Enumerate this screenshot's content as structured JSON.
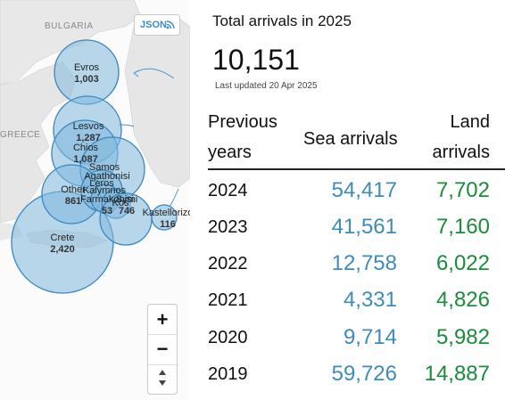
{
  "map": {
    "country_labels": {
      "bulgaria": "BULGARIA",
      "greece": "GREECE"
    },
    "json_button": {
      "label": "JSON",
      "icon": "rss-icon"
    },
    "zoom": {
      "in_label": "+",
      "out_label": "−",
      "reset_icon": "reset-view-icon"
    },
    "bubbles": [
      {
        "name": "Evros",
        "value": "1,003"
      },
      {
        "name": "Lesvos",
        "value": "1,287"
      },
      {
        "name": "Chios",
        "value": "1,087"
      },
      {
        "name": "Samos",
        "value": ""
      },
      {
        "name": "Agathonisi",
        "value": ""
      },
      {
        "name": "Leros",
        "value": ""
      },
      {
        "name": "Other",
        "value": "861"
      },
      {
        "name": "Kalymnos",
        "value": ""
      },
      {
        "name": "Farmakonisi",
        "value": "53"
      },
      {
        "name": "Kos",
        "value": ""
      },
      {
        "name": "Symi",
        "value": "746"
      },
      {
        "name": "Kastellorizo",
        "value": "116"
      },
      {
        "name": "Crete",
        "value": "2,420"
      }
    ]
  },
  "summary": {
    "title": "Total arrivals in 2025",
    "total": "10,151",
    "last_updated": "Last updated 20 Apr 2025"
  },
  "table": {
    "headers": {
      "previous_line1": "Previous",
      "previous_line2": "years",
      "sea": "Sea arrivals",
      "land_line1": "Land",
      "land_line2": "arrivals"
    },
    "rows": [
      {
        "year": "2024",
        "sea": "54,417",
        "land": "7,702"
      },
      {
        "year": "2023",
        "sea": "41,561",
        "land": "7,160"
      },
      {
        "year": "2022",
        "sea": "12,758",
        "land": "6,022"
      },
      {
        "year": "2021",
        "sea": "4,331",
        "land": "4,826"
      },
      {
        "year": "2020",
        "sea": "9,714",
        "land": "5,982"
      },
      {
        "year": "2019",
        "sea": "59,726",
        "land": "14,887"
      }
    ]
  },
  "colors": {
    "sea": "#3d8bbd",
    "land": "#1a8c3a",
    "bubble_fill": "#7fb8dc",
    "bubble_stroke": "#3a87c0"
  }
}
